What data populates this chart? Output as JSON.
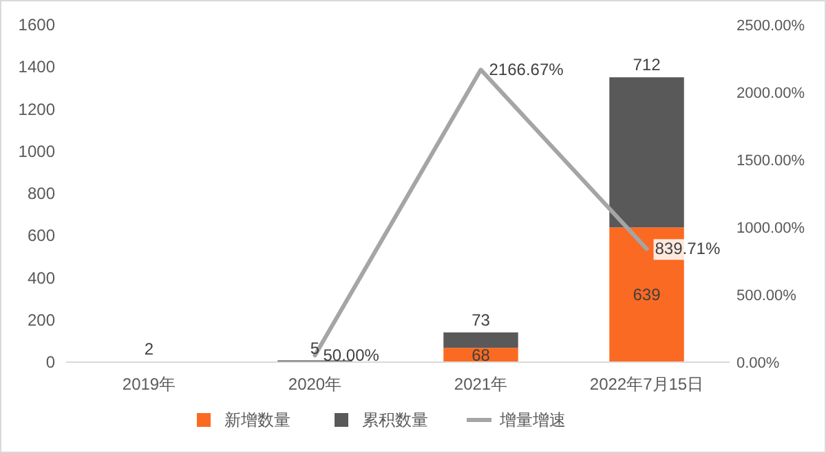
{
  "chart_data": {
    "type": "bar",
    "stacked": true,
    "categories": [
      "2019年",
      "2020年",
      "2021年",
      "2022年7月15日"
    ],
    "series": [
      {
        "name": "新增数量",
        "color": "#fb6a22",
        "values": [
          null,
          3,
          68,
          639
        ],
        "value_labels": [
          null,
          null,
          "68",
          "639"
        ]
      },
      {
        "name": "累积数量",
        "color": "#595959",
        "values": [
          2,
          5,
          73,
          712
        ],
        "value_labels": [
          "2",
          "5",
          "73",
          "712"
        ]
      },
      {
        "name": "增量增速",
        "type": "line",
        "axis": "y2",
        "color": "#a5a5a5",
        "values": [
          null,
          50,
          2166.67,
          839.71
        ],
        "value_labels": [
          null,
          "50.00%",
          "2166.67%",
          "839.71%"
        ]
      }
    ],
    "ylim": [
      0,
      1600
    ],
    "yticks": [
      0,
      200,
      400,
      600,
      800,
      1000,
      1200,
      1400,
      1600
    ],
    "y2lim": [
      0,
      2500
    ],
    "y2ticks": [
      {
        "value": 0,
        "label": "0.00%"
      },
      {
        "value": 500,
        "label": "500.00%"
      },
      {
        "value": 1000,
        "label": "1000.00%"
      },
      {
        "value": 1500,
        "label": "1500.00%"
      },
      {
        "value": 2000,
        "label": "2000.00%"
      },
      {
        "value": 2500,
        "label": "2500.00%"
      }
    ],
    "grid": false,
    "legend": "bottom",
    "marker": "none",
    "line_style": "solid"
  }
}
